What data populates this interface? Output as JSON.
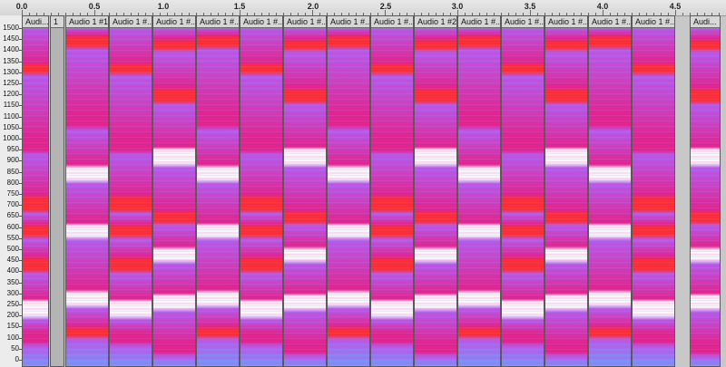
{
  "ruler": {
    "labels": [
      "0.0",
      "0.5",
      "1.0",
      "1.5",
      "2.0",
      "2.5",
      "3.0",
      "3.5",
      "4.0",
      "4.5"
    ]
  },
  "freq_scale": {
    "labels": [
      "1500",
      "1450",
      "1400",
      "1350",
      "1300",
      "1250",
      "1200",
      "1150",
      "1100",
      "1050",
      "1000",
      "950",
      "900",
      "850",
      "800",
      "750",
      "700",
      "650",
      "600",
      "550",
      "500",
      "450",
      "400",
      "350",
      "300",
      "250",
      "200",
      "150",
      "100",
      "50",
      "0"
    ]
  },
  "clips": [
    {
      "label": "Audi..."
    },
    {
      "label": "1"
    },
    {
      "label": "Audio 1 #1"
    },
    {
      "label": "Audio 1 #..."
    },
    {
      "label": "Audio 1 #..."
    },
    {
      "label": "Audio 1 #..."
    },
    {
      "label": "Audio 1 #..."
    },
    {
      "label": "Audio 1 #..."
    },
    {
      "label": "Audio 1 #..."
    },
    {
      "label": "Audio 1 #..."
    },
    {
      "label": "Audio 1 #2"
    },
    {
      "label": "Audio 1 #..."
    },
    {
      "label": "Audio 1 #..."
    },
    {
      "label": "Audio 1 #..."
    },
    {
      "label": "Audio 1 #..."
    },
    {
      "label": "Audio 1 #..."
    },
    {
      "label": "Audi..."
    }
  ],
  "colors": {
    "spectrogram_base": "#b35cf0",
    "spectrogram_low": "#6f9cff",
    "spectrogram_mid": "#e0208a",
    "spectrogram_hot": "#ff2a2a",
    "spectrogram_peak": "#ffffff"
  }
}
